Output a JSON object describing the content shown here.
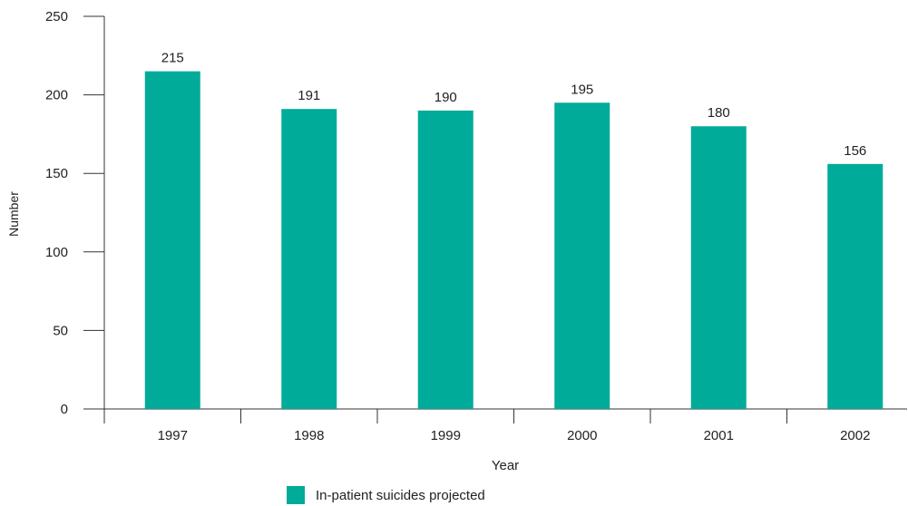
{
  "chart_data": {
    "type": "bar",
    "categories": [
      "1997",
      "1998",
      "1999",
      "2000",
      "2001",
      "2002"
    ],
    "series": [
      {
        "name": "In-patient suicides projected",
        "values": [
          215,
          191,
          190,
          195,
          180,
          156
        ]
      }
    ],
    "data_labels": [
      "215",
      "191",
      "190",
      "195",
      "180",
      "156"
    ],
    "xlabel": "Year",
    "ylabel": "Number",
    "ylim": [
      0,
      250
    ],
    "yticks": [
      0,
      50,
      100,
      150,
      200,
      250
    ],
    "grid": false,
    "legend_position": "bottom-center",
    "colors": {
      "bar": "#00ab99",
      "axis": "#333333",
      "text": "#222222"
    }
  }
}
